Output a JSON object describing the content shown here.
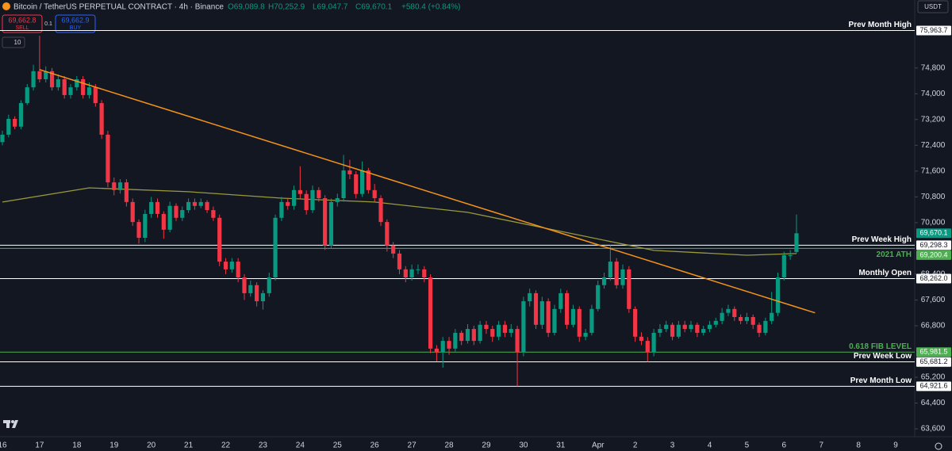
{
  "chart_data": {
    "type": "candlestick",
    "title": "Bitcoin / TetherUS PERPETUAL CONTRACT · 4h · Binance",
    "ohlc_labels": {
      "o": "O69,089.8",
      "h": "H70,252.9",
      "l": "L69,047.7",
      "c": "C69,670.1",
      "change": "+580.4 (+0.84%)"
    },
    "trade_panel": {
      "sell_price": "69,662.8",
      "sell": "SELL",
      "quantity": "0.1",
      "buy_price": "69,662.9",
      "buy": "BUY",
      "indicator_count": "10",
      "currency": "USDT"
    },
    "up_color": "#089981",
    "down_color": "#f23645",
    "open": [
      72500,
      72730,
      73220,
      72980,
      73710,
      74200,
      74700,
      74450,
      74700,
      74200,
      74450,
      73960,
      74200,
      74450,
      73960,
      74200,
      73710,
      72730,
      71250,
      71010,
      71250,
      70640,
      70020,
      69530,
      70270,
      70640,
      70270,
      69780,
      70520,
      70150,
      70390,
      70640,
      70520,
      70640,
      70390,
      70150,
      68790,
      68550,
      68790,
      68300,
      67810,
      68060,
      67560,
      67810,
      68300,
      70150,
      70640,
      70520,
      71010,
      70890,
      70390,
      71010,
      70760,
      69290,
      70640,
      70760,
      71620,
      71500,
      70890,
      71620,
      71010,
      70760,
      70020,
      69290,
      69040,
      68550,
      68300,
      68550,
      68550,
      68300,
      66090,
      65970,
      66330,
      66090,
      66580,
      66330,
      66700,
      66330,
      66830,
      66700,
      66460,
      66830,
      66580,
      66700,
      65970,
      67560,
      67810,
      66830,
      67560,
      66580,
      67320,
      67810,
      66830,
      67320,
      66460,
      66580,
      67320,
      68060,
      68300,
      68790,
      68060,
      68550,
      67320,
      66460,
      66330,
      65970,
      66580,
      66700,
      66830,
      66460,
      66830,
      66700,
      66830,
      66580,
      66700,
      66830,
      66950,
      67200,
      67320,
      67070,
      66950,
      67070,
      66830,
      66580,
      66950,
      67200,
      68300,
      68990,
      69089.8
    ],
    "high": [
      72850,
      73350,
      73300,
      73800,
      74300,
      74900,
      75800,
      74850,
      74800,
      74600,
      74550,
      74300,
      74550,
      74550,
      74350,
      74300,
      73800,
      72850,
      71400,
      71350,
      71350,
      70750,
      70100,
      70400,
      70800,
      70750,
      70350,
      70650,
      70600,
      70500,
      70750,
      70750,
      70750,
      70700,
      70500,
      70250,
      68900,
      68900,
      68900,
      68400,
      68200,
      68150,
      67900,
      68450,
      70250,
      70800,
      70750,
      71150,
      71750,
      71000,
      71150,
      71100,
      70850,
      70750,
      70900,
      72100,
      71950,
      71600,
      71900,
      71700,
      71200,
      70850,
      70100,
      69400,
      69150,
      68650,
      68700,
      68700,
      68650,
      68400,
      66200,
      66450,
      66450,
      66700,
      66650,
      66850,
      66800,
      66950,
      66950,
      66800,
      66950,
      66950,
      66850,
      66800,
      67700,
      67950,
      67900,
      67700,
      67650,
      67450,
      67950,
      67900,
      67450,
      67400,
      66700,
      67450,
      68200,
      68450,
      69300,
      68900,
      68700,
      68650,
      67400,
      66600,
      66450,
      66700,
      66850,
      66950,
      66900,
      66950,
      66950,
      66950,
      66900,
      66800,
      66950,
      67050,
      67350,
      67450,
      67400,
      67150,
      67200,
      67150,
      66900,
      67050,
      67850,
      68450,
      69100,
      69150,
      70252.9
    ],
    "low": [
      72400,
      72650,
      72900,
      72900,
      73650,
      74100,
      74350,
      74350,
      74100,
      74100,
      73850,
      73850,
      74100,
      73850,
      73850,
      73600,
      72600,
      71100,
      70850,
      70900,
      70500,
      69900,
      69350,
      69400,
      70150,
      70150,
      69500,
      69700,
      70050,
      70050,
      70300,
      70400,
      70450,
      70300,
      70050,
      68650,
      68400,
      68450,
      68150,
      67600,
      67700,
      67400,
      67300,
      67700,
      68200,
      70050,
      70400,
      70400,
      70750,
      70250,
      70300,
      70650,
      69150,
      69200,
      70500,
      70650,
      71350,
      70750,
      70800,
      70900,
      70650,
      69900,
      69100,
      68900,
      68400,
      68150,
      68200,
      68400,
      68150,
      65950,
      65700,
      65500,
      65900,
      66000,
      66200,
      66250,
      66200,
      66250,
      66550,
      66300,
      66350,
      66450,
      66450,
      64921.6,
      65850,
      67400,
      66700,
      66700,
      66450,
      66500,
      67200,
      66700,
      66750,
      66300,
      66350,
      66500,
      67250,
      67950,
      68200,
      67950,
      67950,
      67200,
      66300,
      66200,
      65681,
      65850,
      66450,
      66600,
      66350,
      66400,
      66600,
      66600,
      66450,
      66500,
      66600,
      66750,
      66850,
      67100,
      66950,
      66850,
      66850,
      66700,
      66450,
      66500,
      66850,
      67100,
      68200,
      68850,
      69047.7
    ],
    "close": [
      72730,
      73220,
      72980,
      73710,
      74200,
      74700,
      74450,
      74700,
      74200,
      74450,
      73960,
      74200,
      74450,
      73960,
      74200,
      73710,
      72730,
      71250,
      71010,
      71250,
      70640,
      70020,
      69530,
      70270,
      70640,
      70270,
      69780,
      70520,
      70150,
      70390,
      70640,
      70520,
      70640,
      70390,
      70150,
      68790,
      68550,
      68790,
      68300,
      67810,
      68060,
      67560,
      67810,
      68300,
      70150,
      70640,
      70520,
      71010,
      70890,
      70390,
      71010,
      70760,
      69290,
      70640,
      70760,
      71620,
      71500,
      70890,
      71620,
      71010,
      70760,
      70020,
      69290,
      69040,
      68550,
      68300,
      68550,
      68550,
      68300,
      66090,
      65970,
      66330,
      66090,
      66580,
      66330,
      66700,
      66330,
      66830,
      66700,
      66460,
      66830,
      66580,
      66700,
      65970,
      67560,
      67810,
      66830,
      67560,
      66580,
      67320,
      67810,
      66830,
      67320,
      66460,
      66580,
      67320,
      68060,
      68300,
      68790,
      68060,
      68550,
      67320,
      66460,
      66330,
      65970,
      66580,
      66700,
      66830,
      66460,
      66830,
      66700,
      66830,
      66580,
      66700,
      66830,
      66950,
      67200,
      67320,
      67070,
      66950,
      67070,
      66830,
      66580,
      66950,
      67200,
      68300,
      68990,
      68990,
      69670.1
    ],
    "last_price_label": "69,670.1",
    "moving_average": {
      "color": "#9a9a3a",
      "x": [
        0,
        14,
        30,
        45,
        60,
        75,
        90,
        105,
        120,
        128
      ],
      "values": [
        70640,
        71080,
        70960,
        70760,
        70640,
        70320,
        69730,
        69140,
        68990,
        69040
      ]
    },
    "trendline": {
      "color": "#f7931a",
      "x": [
        6,
        131
      ],
      "values": [
        74750,
        67200
      ]
    },
    "levels": [
      {
        "label": "Prev Month High",
        "value": 75963.7,
        "tag": "75,963.7",
        "color": "#ffffff"
      },
      {
        "label": "Prev Week High",
        "value": 69298.3,
        "tag": "69,298.3",
        "color": "#ffffff"
      },
      {
        "label": "2021 ATH",
        "value": 69200.4,
        "tag": "69,200.4",
        "color": "#4caf50"
      },
      {
        "label": "Monthly Open",
        "value": 68262.0,
        "tag": "68,262.0",
        "color": "#ffffff"
      },
      {
        "label": "0.618 FIB LEVEL",
        "value": 65981.5,
        "tag": "65,981.5",
        "color": "#4caf50"
      },
      {
        "label": "Prev Week Low",
        "value": 65681.2,
        "tag": "65,681.2",
        "color": "#ffffff"
      },
      {
        "label": "Prev Month Low",
        "value": 64921.6,
        "tag": "64,921.6",
        "color": "#ffffff"
      }
    ],
    "ylim": [
      63380,
      76910
    ],
    "yticks": [
      {
        "value": 63600,
        "label": "63,600"
      },
      {
        "value": 64400,
        "label": "64,400"
      },
      {
        "value": 65200,
        "label": "65,200"
      },
      {
        "value": 66800,
        "label": "66,800"
      },
      {
        "value": 67600,
        "label": "67,600"
      },
      {
        "value": 68400,
        "label": "68,400"
      },
      {
        "value": 70000,
        "label": "70,000"
      },
      {
        "value": 70800,
        "label": "70,800"
      },
      {
        "value": 71600,
        "label": "71,600"
      },
      {
        "value": 72400,
        "label": "72,400"
      },
      {
        "value": 73200,
        "label": "73,200"
      },
      {
        "value": 74000,
        "label": "74,000"
      },
      {
        "value": 74800,
        "label": "74,800"
      }
    ],
    "x_labels": [
      "16",
      "17",
      "18",
      "19",
      "20",
      "21",
      "22",
      "23",
      "24",
      "25",
      "26",
      "27",
      "28",
      "29",
      "30",
      "31",
      "Apr",
      "2",
      "3",
      "4",
      "5",
      "6",
      "7",
      "8",
      "9"
    ],
    "grid": false
  }
}
